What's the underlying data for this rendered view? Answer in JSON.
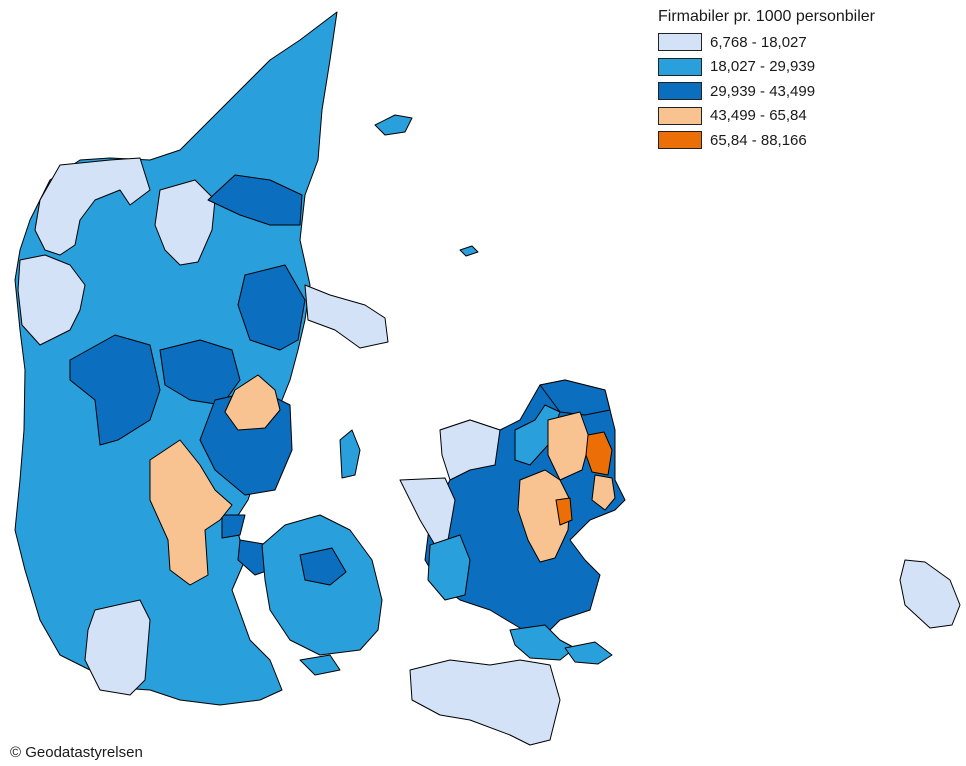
{
  "legend": {
    "title": "Firmabiler pr. 1000 personbiler",
    "classes": [
      {
        "label": "6,768 - 18,027",
        "color": "#d3e2f6"
      },
      {
        "label": "18,027 - 29,939",
        "color": "#29a0dc"
      },
      {
        "label": "29,939 - 43,499",
        "color": "#0b6ebf"
      },
      {
        "label": "43,499 - 65,84",
        "color": "#f9c391"
      },
      {
        "label": "65,84 - 88,166",
        "color": "#ec6e06"
      }
    ]
  },
  "credit": "© Geodatastyrelsen",
  "colors": {
    "background": "#ffffff",
    "border": "#000000",
    "class_1": "#d3e2f6",
    "class_2": "#29a0dc",
    "class_3": "#0b6ebf",
    "class_4": "#f9c391",
    "class_5": "#ec6e06"
  }
}
